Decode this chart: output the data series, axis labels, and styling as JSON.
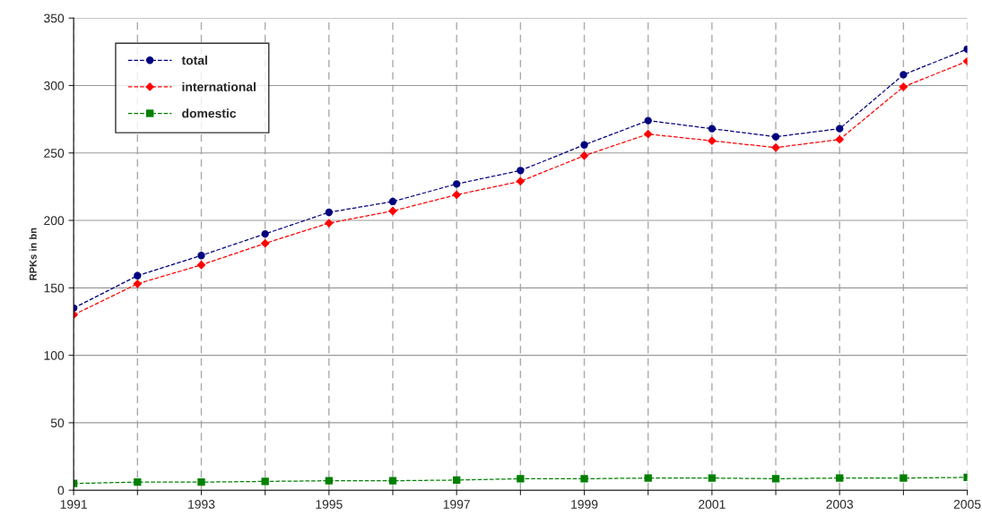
{
  "chart_data": {
    "type": "line",
    "ylabel": "RPKs in bn",
    "x": [
      1991,
      1992,
      1993,
      1994,
      1995,
      1996,
      1997,
      1998,
      1999,
      2000,
      2001,
      2002,
      2003,
      2004,
      2005
    ],
    "series": [
      {
        "name": "total",
        "color": "#000080",
        "marker": "circle",
        "values": [
          135,
          159,
          174,
          190,
          206,
          214,
          227,
          237,
          256,
          274,
          268,
          262,
          268,
          308,
          327
        ]
      },
      {
        "name": "international",
        "color": "#ff0000",
        "marker": "diamond",
        "values": [
          130,
          153,
          167,
          183,
          198,
          207,
          219,
          229,
          248,
          264,
          259,
          254,
          260,
          299,
          318
        ]
      },
      {
        "name": "domestic",
        "color": "#008000",
        "marker": "square",
        "values": [
          5,
          6,
          6,
          6.5,
          7,
          7,
          7.5,
          8.5,
          8.5,
          9,
          9,
          8.5,
          9,
          9,
          9.5
        ]
      }
    ],
    "line_style": "dashed",
    "xlim": [
      1991,
      2005
    ],
    "ylim": [
      0,
      350
    ],
    "xticks": [
      1991,
      {
        "value": 1992,
        "label": null
      },
      1993,
      {
        "value": 1994,
        "label": null
      },
      1995,
      {
        "value": 1996,
        "label": null
      },
      1997,
      {
        "value": 1998,
        "label": null
      },
      1999,
      {
        "value": 2000,
        "label": null
      },
      2001,
      {
        "value": 2002,
        "label": null
      },
      2003,
      {
        "value": 2004,
        "label": null
      },
      2005
    ],
    "yticks": [
      0,
      50,
      100,
      150,
      200,
      250,
      300,
      350
    ],
    "grid": true,
    "legend": "top left"
  }
}
